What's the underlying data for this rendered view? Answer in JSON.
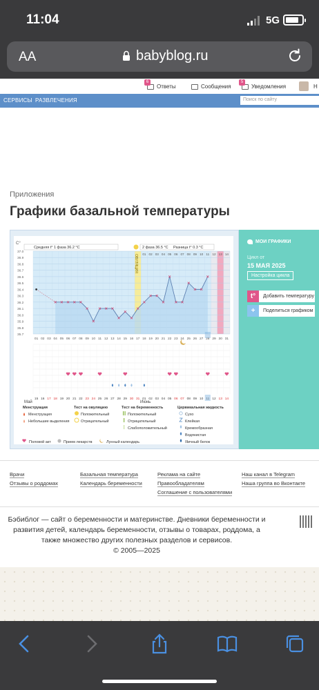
{
  "status_bar": {
    "time": "11:04",
    "network": "5G"
  },
  "browser": {
    "text_size_label": "AA",
    "domain": "babyblog.ru"
  },
  "site_header": {
    "answers": "Ответы",
    "answers_badge": "6",
    "messages": "Сообщения",
    "notifications": "Уведомления",
    "notifications_badge": "5",
    "user_initial": "Н"
  },
  "nav": {
    "services": "СЕРВИСЫ",
    "entertainment": "РАЗВЛЕЧЕНИЯ",
    "search_placeholder": "Поиск по сайту"
  },
  "breadcrumb": "Приложения",
  "page_title": "Графики базальной температуры",
  "chart_info": {
    "unit": "C°",
    "phase1": "Средняя t° 1 фаза 36.2 °C",
    "phase2": "2 фаза 36.5 °C",
    "diff": "Разница t° 0.3 °C",
    "ovulation": "ОВУЛЯЦИЯ",
    "month_may": "Май",
    "month_june": "Июнь"
  },
  "chart_data": {
    "type": "line",
    "ylim": [
      35.7,
      37.0
    ],
    "y_ticks": [
      "37.0",
      "36.9",
      "36.8",
      "36.7",
      "36.6",
      "36.5",
      "36.4",
      "36.3",
      "36.2",
      "36.1",
      "36.0",
      "35.9",
      "35.8",
      "35.7"
    ],
    "x_days": [
      "01",
      "02",
      "03",
      "04",
      "05",
      "06",
      "07",
      "08",
      "09",
      "10",
      "11",
      "12",
      "13",
      "14",
      "15",
      "16",
      "17",
      "18",
      "19",
      "20",
      "21",
      "22",
      "23",
      "24",
      "25",
      "26",
      "27",
      "28",
      "29",
      "30",
      "31"
    ],
    "dates": [
      "15",
      "16",
      "17",
      "18",
      "19",
      "20",
      "21",
      "22",
      "23",
      "24",
      "25",
      "26",
      "27",
      "28",
      "29",
      "30",
      "31",
      "01",
      "02",
      "03",
      "04",
      "05",
      "06",
      "07",
      "08",
      "09",
      "10",
      "11",
      "12",
      "13",
      "14"
    ],
    "second_phase_days": [
      "01",
      "02",
      "03",
      "04",
      "05",
      "06",
      "07",
      "08",
      "09",
      "10",
      "11",
      "12",
      "13",
      "14"
    ],
    "series": [
      {
        "values": [
          36.4,
          null,
          null,
          36.2,
          36.2,
          36.2,
          36.2,
          36.2,
          36.1,
          35.9,
          36.1,
          36.1,
          36.1,
          35.95,
          36.05,
          35.95,
          36.1,
          36.2,
          36.3,
          36.3,
          36.2,
          36.6,
          36.2,
          36.2,
          36.5,
          36.4,
          36.4,
          36.6,
          null,
          null,
          null
        ]
      }
    ]
  },
  "legend": {
    "menstruation_title": "Менструация",
    "menstruation": "Менструация",
    "light_bleeding": "Небольшие выделения",
    "ovulation_test_title": "Тест на овуляцию",
    "positive": "Положительный",
    "negative": "Отрицательный",
    "pregnancy_test_title": "Тест на беременность",
    "preg_positive": "Положительный",
    "preg_negative": "Отрицательный",
    "preg_weak": "Слабоположительный",
    "fluid_title": "Цервикальная жидкость",
    "dry": "Сухо",
    "sticky": "Клейкая",
    "creamy": "Кремообразная",
    "watery": "Водянистая",
    "egg_white": "Яичный белок",
    "intercourse": "Половой акт",
    "medicine": "Прием лекарств",
    "lunar": "Лунный календарь"
  },
  "panel": {
    "my_charts": "МОИ ГРАФИКИ",
    "cycle_from": "Цикл от",
    "cycle_date": "15 МАЯ 2025",
    "cycle_settings": "Настройка цикла",
    "add_temp": "Добавить температуру",
    "share": "Поделиться графиком"
  },
  "footer": {
    "doctors": "Врачи",
    "maternity_reviews": "Отзывы о роддомах",
    "basal_temp": "Базальная температура",
    "pregnancy_calendar": "Календарь беременности",
    "advertising": "Реклама на сайте",
    "rights_holders": "Правообладателям",
    "user_agreement": "Соглашение с пользователями",
    "telegram": "Наш канал в Telegram",
    "vk": "Наша группа во Вконтакте",
    "about": "Бэбиблог — сайт о беременности и материнстве. Дневники беременности и развития детей, календарь беременности, отзывы о товарах, роддома, а также множество других полезных разделов и сервисов.",
    "copyright": "© 2005—2025"
  }
}
